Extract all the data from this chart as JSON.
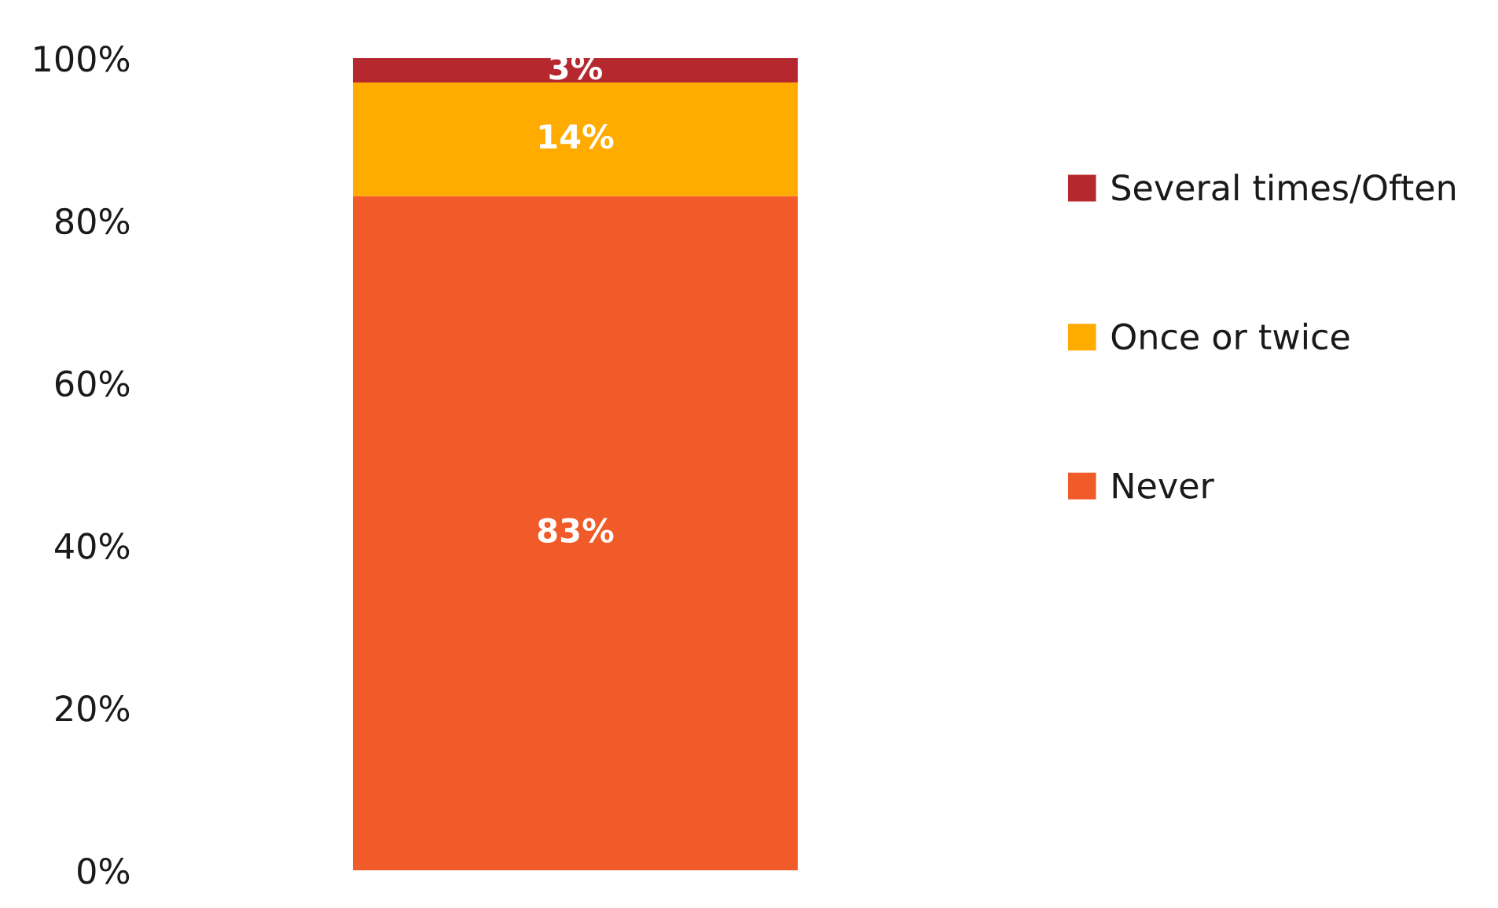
{
  "chart_data": {
    "type": "bar",
    "stacked": true,
    "categories": [
      null
    ],
    "series": [
      {
        "name": "Never",
        "color": "#f15a29",
        "values": [
          83
        ],
        "value_labels": [
          "83%"
        ]
      },
      {
        "name": "Once or twice",
        "color": "#ffab00",
        "values": [
          14
        ],
        "value_labels": [
          "14%"
        ]
      },
      {
        "name": "Several times/Often",
        "color": "#b5282e",
        "values": [
          3
        ],
        "value_labels": [
          "3%"
        ]
      }
    ],
    "ylim": [
      0,
      100
    ],
    "yticks": [
      {
        "value": 0,
        "label": "0%"
      },
      {
        "value": 20,
        "label": "20%"
      },
      {
        "value": 40,
        "label": "40%"
      },
      {
        "value": 60,
        "label": "60%"
      },
      {
        "value": 80,
        "label": "80%"
      },
      {
        "value": 100,
        "label": "100%"
      }
    ],
    "grid": false,
    "legend": "right"
  }
}
